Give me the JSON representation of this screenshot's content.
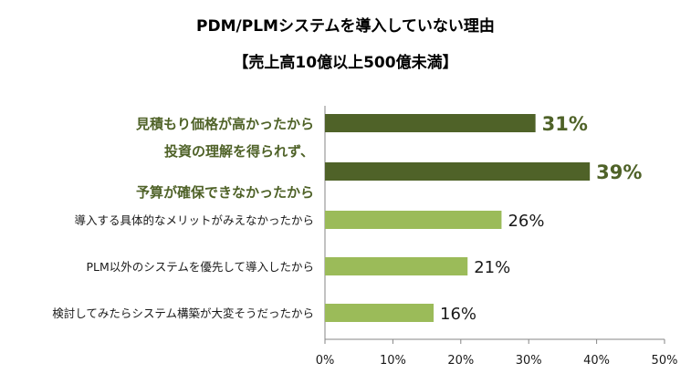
{
  "chart_data": {
    "type": "bar",
    "orientation": "horizontal",
    "title": "PDM/PLMシステムを導入していない理由",
    "subtitle": "【売上高10億以上500億未満】",
    "categories": [
      [
        "見積もり価格が高かったから"
      ],
      [
        "投資の理解を得られず、",
        "予算が確保できなかったから"
      ],
      [
        "導入する具体的なメリットがみえなかったから"
      ],
      [
        "PLM以外のシステムを優先して導入したから"
      ],
      [
        "検討してみたらシステム構築が大変そうだったから"
      ]
    ],
    "values": [
      31,
      39,
      26,
      21,
      16
    ],
    "value_labels": [
      "31%",
      "39%",
      "26%",
      "21%",
      "16%"
    ],
    "highlighted": [
      true,
      true,
      false,
      false,
      false
    ],
    "xlim": [
      0,
      50
    ],
    "x_ticks": [
      0,
      10,
      20,
      30,
      40,
      50
    ],
    "x_tick_labels": [
      "0%",
      "10%",
      "20%",
      "30%",
      "40%",
      "50%"
    ],
    "grid": false,
    "colors": {
      "highlight": "#4f6228",
      "normal": "#9bbb59",
      "axis": "#868686"
    }
  }
}
